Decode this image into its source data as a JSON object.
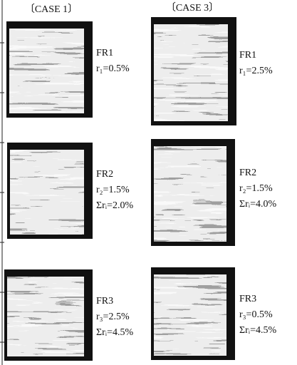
{
  "columns": [
    {
      "header": "〔CASE 1〕",
      "panels": [
        {
          "label": "FR1",
          "lines": [
            "r₁=0.5%"
          ]
        },
        {
          "label": "FR2",
          "lines": [
            "r₂=1.5%",
            "Σrᵢ=2.0%"
          ]
        },
        {
          "label": "FR3",
          "lines": [
            "r₃=2.5%",
            "Σrᵢ=4.5%"
          ]
        }
      ]
    },
    {
      "header": "〔CASE 3〕",
      "panels": [
        {
          "label": "FR1",
          "lines": [
            "r₁=2.5%"
          ]
        },
        {
          "label": "FR2",
          "lines": [
            "r₂=1.5%",
            "Σrᵢ=4.0%"
          ]
        },
        {
          "label": "FR3",
          "lines": [
            "r₃=0.5%",
            "Σrᵢ=4.5%"
          ]
        }
      ]
    }
  ]
}
